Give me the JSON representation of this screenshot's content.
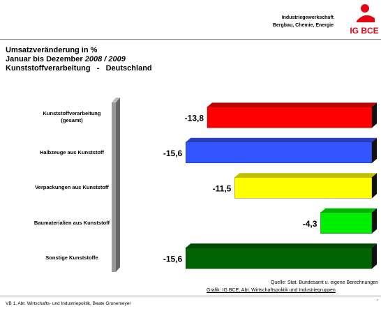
{
  "header": {
    "org_line1": "Industriegewerkschaft",
    "org_line2": "Bergbau, Chemie, Energie",
    "logo": "IG BCE"
  },
  "chart_data": {
    "type": "bar",
    "orientation": "horizontal",
    "title_lines": [
      "Umsatzveränderung in %",
      "Januar bis Dezember",
      "2008 / 2009",
      "Kunststoffverarbeitung   -   Deutschland"
    ],
    "categories": [
      "Kunststoffverarbeitung\n(gesamt)",
      "Halbzeuge aus Kunststoff",
      "Verpackungen aus Kunststoff",
      "Baumaterialien aus Kunststoff",
      "Sonstige Kunststoffe"
    ],
    "values": [
      -13.8,
      -15.6,
      -11.5,
      -4.3,
      -15.6
    ],
    "value_labels": [
      "-13,8",
      "-15,6",
      "-11,5",
      "-4,3",
      "-15,6"
    ],
    "colors": [
      "#ff0000",
      "#3355ff",
      "#ffff00",
      "#00ee00",
      "#006400"
    ]
  },
  "footer": {
    "source": "Quelle: Stat. Bundesamt u. eigene Berechnungen",
    "credit": "Grafik: IG BCE, Abt. Wirtschaftspolitik und Industriegruppen",
    "author": "VB 1, Abt. Wirtschafts- und Industriepolitik, Beate Gronemeyer",
    "page": "7"
  }
}
